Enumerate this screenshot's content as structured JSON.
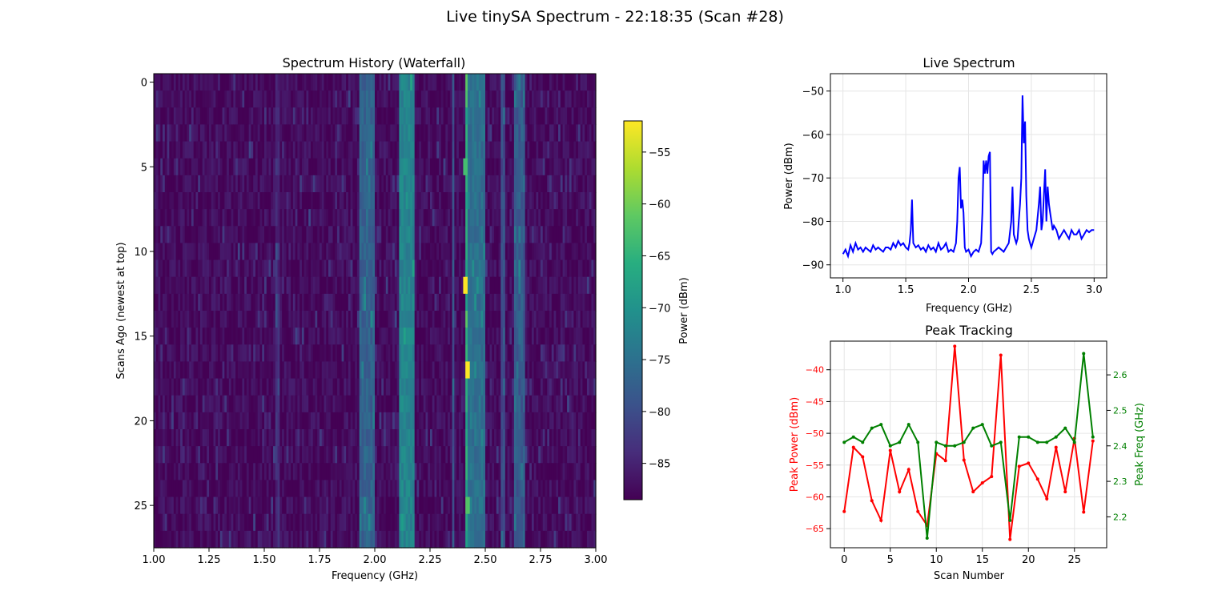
{
  "figure": {
    "suptitle": "Live tinySA Spectrum - 22:18:35 (Scan #28)"
  },
  "chart_data": [
    {
      "type": "heatmap",
      "title": "Spectrum History (Waterfall)",
      "xlabel": "Frequency (GHz)",
      "ylabel": "Scans Ago (newest at top)",
      "xlim": [
        1.0,
        3.0
      ],
      "ylim": [
        27.5,
        -0.5
      ],
      "x_ticks": [
        "1.00",
        "1.25",
        "1.50",
        "1.75",
        "2.00",
        "2.25",
        "2.50",
        "2.75",
        "3.00"
      ],
      "y_ticks": [
        "0",
        "5",
        "10",
        "15",
        "20",
        "25"
      ],
      "rows": 28,
      "colormap": "viridis",
      "colorbar": {
        "label": "Power (dBm)",
        "range": [
          -88.5,
          -52
        ],
        "ticks": [
          "−55",
          "−60",
          "−65",
          "−70",
          "−75",
          "−80",
          "−85"
        ]
      },
      "bands": [
        {
          "start": 1.55,
          "end": 1.57,
          "level": -84
        },
        {
          "start": 1.93,
          "end": 2.0,
          "level": -77
        },
        {
          "start": 2.11,
          "end": 2.18,
          "level": -72
        },
        {
          "start": 2.355,
          "end": 2.365,
          "level": -79
        },
        {
          "start": 2.41,
          "end": 2.42,
          "level": -66
        },
        {
          "start": 2.42,
          "end": 2.5,
          "level": -75
        },
        {
          "start": 2.57,
          "end": 2.59,
          "level": -80
        },
        {
          "start": 2.63,
          "end": 2.68,
          "level": -78
        }
      ],
      "bright_spots": [
        {
          "row": 5,
          "freq": 2.41,
          "level": -63
        },
        {
          "row": 12,
          "freq": 2.41,
          "level": -52
        },
        {
          "row": 17,
          "freq": 2.42,
          "level": -52
        },
        {
          "row": 25,
          "freq": 2.42,
          "level": -62
        }
      ]
    },
    {
      "type": "line",
      "title": "Live Spectrum",
      "xlabel": "Frequency (GHz)",
      "ylabel": "Power (dBm)",
      "xlim": [
        0.9,
        3.1
      ],
      "ylim": [
        -93,
        -46
      ],
      "x_ticks": [
        1.0,
        1.5,
        2.0,
        2.5,
        3.0
      ],
      "y_ticks": [
        -50,
        -60,
        -70,
        -80,
        -90
      ],
      "grid": true,
      "color": "#0000ff",
      "x": [
        1.0,
        1.02,
        1.04,
        1.06,
        1.08,
        1.1,
        1.12,
        1.14,
        1.16,
        1.18,
        1.2,
        1.22,
        1.24,
        1.26,
        1.28,
        1.3,
        1.32,
        1.34,
        1.36,
        1.38,
        1.4,
        1.42,
        1.44,
        1.46,
        1.48,
        1.5,
        1.52,
        1.53,
        1.54,
        1.55,
        1.56,
        1.58,
        1.6,
        1.62,
        1.64,
        1.66,
        1.68,
        1.7,
        1.72,
        1.74,
        1.76,
        1.78,
        1.8,
        1.82,
        1.84,
        1.86,
        1.88,
        1.9,
        1.91,
        1.92,
        1.93,
        1.94,
        1.95,
        1.96,
        1.97,
        1.98,
        2.0,
        2.02,
        2.04,
        2.06,
        2.08,
        2.1,
        2.11,
        2.12,
        2.13,
        2.14,
        2.15,
        2.16,
        2.17,
        2.18,
        2.19,
        2.2,
        2.22,
        2.24,
        2.26,
        2.28,
        2.3,
        2.32,
        2.34,
        2.35,
        2.36,
        2.37,
        2.38,
        2.39,
        2.4,
        2.41,
        2.42,
        2.43,
        2.44,
        2.45,
        2.46,
        2.47,
        2.48,
        2.49,
        2.5,
        2.52,
        2.54,
        2.56,
        2.57,
        2.58,
        2.59,
        2.6,
        2.61,
        2.62,
        2.63,
        2.64,
        2.65,
        2.66,
        2.67,
        2.68,
        2.7,
        2.72,
        2.74,
        2.76,
        2.78,
        2.8,
        2.82,
        2.84,
        2.86,
        2.88,
        2.9,
        2.92,
        2.94,
        2.96,
        2.98,
        3.0
      ],
      "y": [
        -87.5,
        -86.5,
        -88,
        -85.5,
        -87,
        -85,
        -86.5,
        -86,
        -87,
        -86,
        -86.5,
        -87,
        -85.5,
        -86.5,
        -86,
        -86.5,
        -87,
        -86,
        -86,
        -86.5,
        -85,
        -86,
        -84.5,
        -85.5,
        -85,
        -86,
        -86.5,
        -85,
        -82,
        -75,
        -85,
        -86,
        -85.5,
        -86.5,
        -86,
        -87,
        -85.5,
        -86.5,
        -86,
        -87,
        -85,
        -86.5,
        -86,
        -85,
        -87,
        -86.5,
        -87,
        -85,
        -80,
        -70,
        -67.5,
        -77,
        -75,
        -78,
        -86,
        -87,
        -86.5,
        -88,
        -87,
        -86.5,
        -87,
        -85,
        -78,
        -66,
        -69,
        -66,
        -69,
        -65,
        -64,
        -87,
        -87.5,
        -87,
        -86.5,
        -86,
        -86.5,
        -87,
        -86,
        -85,
        -80,
        -72,
        -83,
        -84,
        -85,
        -84,
        -80,
        -76,
        -70,
        -51,
        -62,
        -57,
        -74,
        -82,
        -84,
        -85,
        -86,
        -84,
        -82,
        -76,
        -72,
        -82,
        -80,
        -74,
        -68,
        -80,
        -72,
        -76,
        -78,
        -80,
        -82,
        -81,
        -82,
        -84,
        -83,
        -82,
        -83,
        -84,
        -82,
        -83,
        -83,
        -82,
        -84,
        -83,
        -82,
        -82.5,
        -82,
        -82
      ]
    },
    {
      "type": "line",
      "title": "Peak Tracking",
      "xlabel": "Scan Number",
      "ylabel": "Peak Power (dBm)",
      "ylabel_right": "Peak Freq (GHz)",
      "xlim": [
        -1.5,
        28.5
      ],
      "ylim": [
        -68,
        -35.5
      ],
      "ylim_right": [
        2.113,
        2.695
      ],
      "x_ticks": [
        0,
        5,
        10,
        15,
        20,
        25
      ],
      "y_ticks": [
        -40,
        -45,
        -50,
        -55,
        -60,
        -65
      ],
      "y_ticks_right": [
        "2.2",
        "2.3",
        "2.4",
        "2.5",
        "2.6"
      ],
      "grid": true,
      "series": [
        {
          "axis": "left",
          "color": "#ff0000",
          "x": [
            0,
            1,
            2,
            3,
            4,
            5,
            6,
            7,
            8,
            9,
            10,
            11,
            12,
            13,
            14,
            15,
            16,
            17,
            18,
            19,
            20,
            21,
            22,
            23,
            24,
            25,
            26,
            27
          ],
          "values": [
            -62.3,
            -52.2,
            -53.7,
            -60.6,
            -63.7,
            -52.7,
            -59.2,
            -55.7,
            -62.3,
            -64.5,
            -53.2,
            -54.3,
            -36.3,
            -54.2,
            -59.2,
            -57.8,
            -56.8,
            -37.7,
            -66.7,
            -55.2,
            -54.7,
            -57.2,
            -60.3,
            -52.2,
            -59.2,
            -50.8,
            -62.4,
            -51.2
          ]
        },
        {
          "axis": "right",
          "color": "#008000",
          "x": [
            0,
            1,
            2,
            3,
            4,
            5,
            6,
            7,
            8,
            9,
            10,
            11,
            12,
            13,
            14,
            15,
            16,
            17,
            18,
            19,
            20,
            21,
            22,
            23,
            24,
            25,
            26,
            27
          ],
          "values": [
            2.41,
            2.425,
            2.41,
            2.45,
            2.46,
            2.4,
            2.41,
            2.46,
            2.41,
            2.14,
            2.41,
            2.4,
            2.4,
            2.41,
            2.45,
            2.46,
            2.4,
            2.41,
            2.19,
            2.425,
            2.425,
            2.41,
            2.41,
            2.425,
            2.45,
            2.41,
            2.66,
            2.425
          ]
        }
      ]
    }
  ]
}
